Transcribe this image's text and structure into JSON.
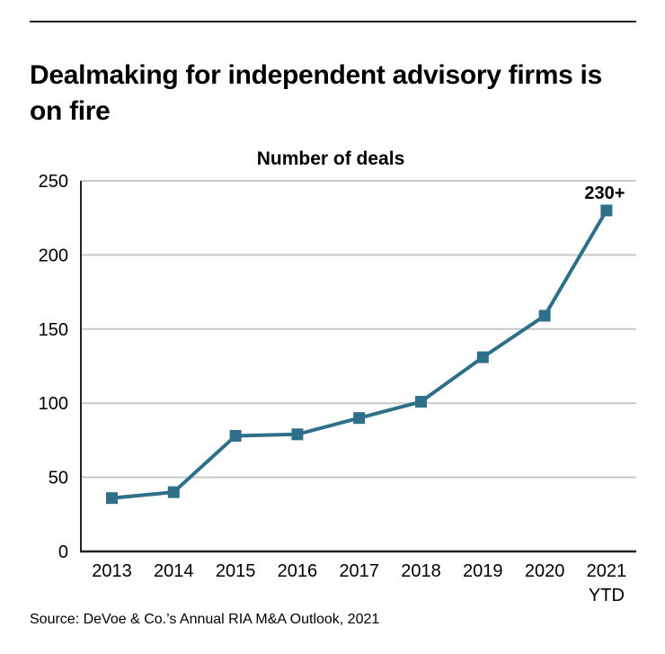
{
  "title": "Dealmaking for independent advisory firms is on fire",
  "source": "Source: DeVoe & Co.’s Annual RIA M&A Outlook, 2021",
  "chart_data": {
    "type": "line",
    "title": "Number of deals",
    "xlabel": "",
    "ylabel": "",
    "categories": [
      "2013",
      "2014",
      "2015",
      "2016",
      "2017",
      "2018",
      "2019",
      "2020",
      "2021"
    ],
    "category_sublabels": [
      "",
      "",
      "",
      "",
      "",
      "",
      "",
      "",
      "YTD"
    ],
    "values": [
      36,
      40,
      78,
      79,
      90,
      101,
      131,
      159,
      230
    ],
    "ylim": [
      0,
      250
    ],
    "yticks": [
      0,
      50,
      100,
      150,
      200,
      250
    ],
    "grid": true,
    "marker": "square",
    "annotations": [
      {
        "category": "2021",
        "text": "230+"
      }
    ],
    "colors": {
      "line": "#2e7089",
      "grid": "#c8c8c8",
      "axis": "#222222"
    }
  }
}
